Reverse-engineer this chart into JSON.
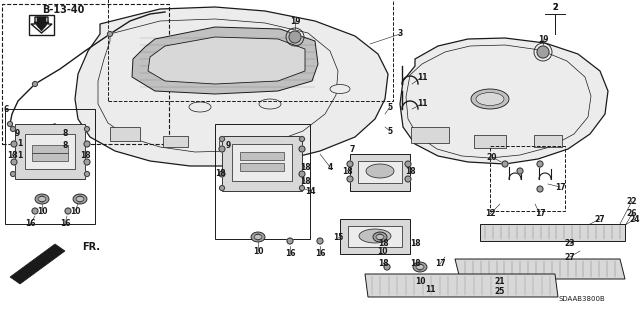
{
  "bg_color": "#ffffff",
  "line_color": "#1a1a1a",
  "fig_width": 6.4,
  "fig_height": 3.19,
  "dpi": 100,
  "title": "B-13-40",
  "diagram_code": "SDAAB3800B",
  "gray_fill": "#d8d8d8",
  "dark_gray": "#a0a0a0",
  "light_gray": "#ececec",
  "mid_gray": "#c0c0c0"
}
